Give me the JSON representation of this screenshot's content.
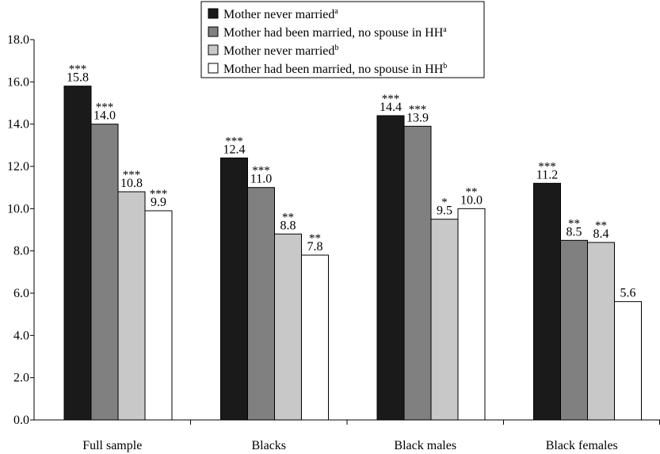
{
  "chart_data": {
    "type": "bar",
    "categories": [
      "Full sample",
      "Blacks",
      "Black males",
      "Black females"
    ],
    "ylim": [
      0,
      18
    ],
    "yticks": [
      "0.0",
      "2.0",
      "4.0",
      "6.0",
      "8.0",
      "10.0",
      "12.0",
      "14.0",
      "16.0",
      "18.0"
    ],
    "grid": false,
    "legend_position": "top-center",
    "series": [
      {
        "name": "Mother never married",
        "superscript": "a",
        "color": "#1a1a1a",
        "values": [
          15.8,
          12.4,
          14.4,
          11.2
        ],
        "labels": [
          "15.8",
          "12.4",
          "14.4",
          "11.2"
        ],
        "significance": [
          "***",
          "***",
          "***",
          "***"
        ]
      },
      {
        "name": "Mother had been married, no spouse in HH",
        "superscript": "a",
        "color": "#808080",
        "values": [
          14.0,
          11.0,
          13.9,
          8.5
        ],
        "labels": [
          "14.0",
          "11.0",
          "13.9",
          "8.5"
        ],
        "significance": [
          "***",
          "***",
          "***",
          "**"
        ]
      },
      {
        "name": "Mother never married",
        "superscript": "b",
        "color": "#c8c8c8",
        "values": [
          10.8,
          8.8,
          9.5,
          8.4
        ],
        "labels": [
          "10.8",
          "8.8",
          "9.5",
          "8.4"
        ],
        "significance": [
          "***",
          "**",
          "*",
          "**"
        ]
      },
      {
        "name": "Mother had been married, no spouse in HH",
        "superscript": "b",
        "color": "#ffffff",
        "values": [
          9.9,
          7.8,
          10.0,
          5.6
        ],
        "labels": [
          "9.9",
          "7.8",
          "10.0",
          "5.6"
        ],
        "significance": [
          "***",
          "**",
          "**",
          ""
        ]
      }
    ]
  }
}
